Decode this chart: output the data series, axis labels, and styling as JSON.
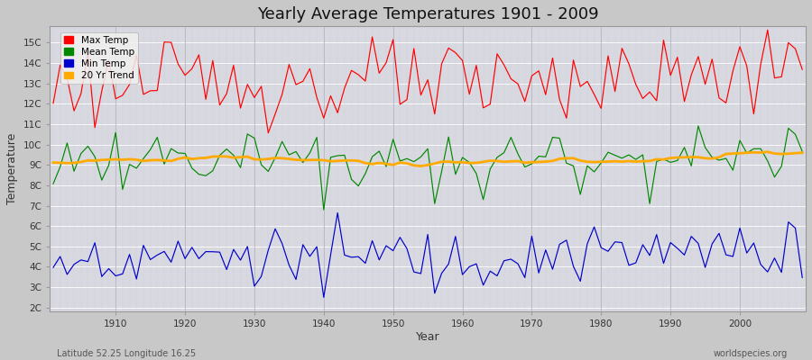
{
  "title": "Yearly Average Temperatures 1901 - 2009",
  "xlabel": "Year",
  "ylabel": "Temperature",
  "subtitle_left": "Latitude 52.25 Longitude 16.25",
  "subtitle_right": "worldspecies.org",
  "years_start": 1901,
  "years_end": 2009,
  "yticks": [
    "2C",
    "3C",
    "4C",
    "5C",
    "6C",
    "7C",
    "8C",
    "9C",
    "10C",
    "11C",
    "12C",
    "13C",
    "14C",
    "15C"
  ],
  "ytick_vals": [
    2,
    3,
    4,
    5,
    6,
    7,
    8,
    9,
    10,
    11,
    12,
    13,
    14,
    15
  ],
  "ylim": [
    1.8,
    15.8
  ],
  "xlim": [
    1900.5,
    2009.5
  ],
  "fig_bg_color": "#c8c8c8",
  "plot_bg_color": "#d8d8e0",
  "grid_color_h": "#ffffff",
  "grid_color_v": "#c0c0c8",
  "max_color": "#ff0000",
  "mean_color": "#008800",
  "min_color": "#0000cc",
  "trend_color": "#ffaa00",
  "legend_labels": [
    "Max Temp",
    "Mean Temp",
    "Min Temp",
    "20 Yr Trend"
  ],
  "legend_colors": [
    "#ff0000",
    "#008800",
    "#0000cc",
    "#ffaa00"
  ],
  "max_base": 13.0,
  "mean_base": 9.2,
  "min_base": 4.5,
  "trend_level": 9.3
}
